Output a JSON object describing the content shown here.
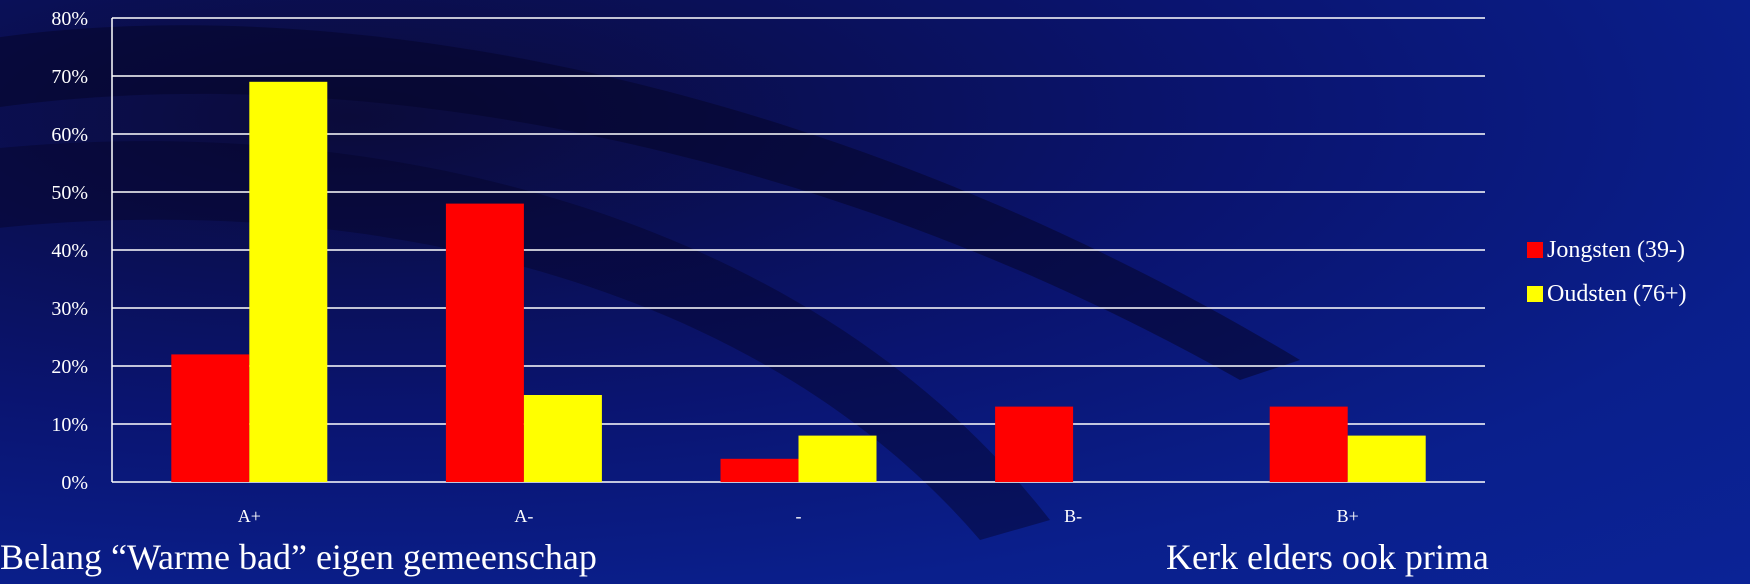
{
  "chart_data": {
    "type": "bar",
    "categories": [
      "A+",
      "A-",
      "-",
      "B-",
      "B+"
    ],
    "series": [
      {
        "name": "Jongsten (39-)",
        "values": [
          22,
          48,
          4,
          13,
          13
        ],
        "color": "#ff0000"
      },
      {
        "name": "Oudsten (76+)",
        "values": [
          69,
          15,
          8,
          0,
          8
        ],
        "color": "#ffff00"
      }
    ],
    "ylim": [
      0,
      80
    ],
    "yticks": [
      "0%",
      "10%",
      "20%",
      "30%",
      "40%",
      "50%",
      "60%",
      "70%",
      "80%"
    ],
    "grid": true,
    "legend_position": "right"
  },
  "footer": {
    "left": "Belang “Warme bad” eigen gemeenschap",
    "right": "Kerk elders ook prima"
  }
}
